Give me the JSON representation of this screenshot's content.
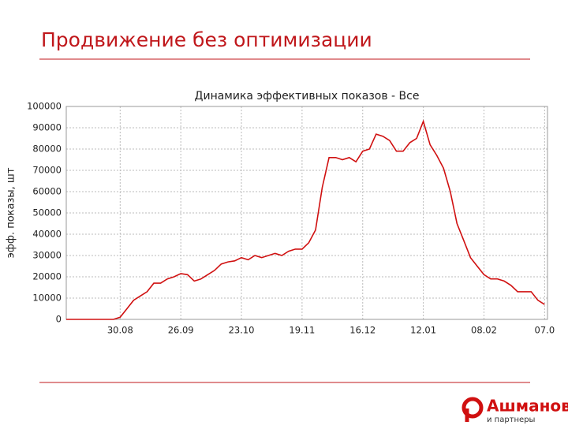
{
  "slide_title": "Продвижение без оптимизации",
  "logo": {
    "name": "Ашманов",
    "tagline": "и партнеры"
  },
  "chart_data": {
    "type": "line",
    "title": "Динамика эффективных показов - Все",
    "y_label": "эфф. показы, шт",
    "categories": [
      null,
      null,
      null,
      null,
      null,
      null,
      null,
      null,
      "30.08",
      null,
      null,
      null,
      null,
      null,
      null,
      null,
      null,
      "26.09",
      null,
      null,
      null,
      null,
      null,
      null,
      null,
      null,
      "23.10",
      null,
      null,
      null,
      null,
      null,
      null,
      null,
      null,
      "19.11",
      null,
      null,
      null,
      null,
      null,
      null,
      null,
      null,
      "16.12",
      null,
      null,
      null,
      null,
      null,
      null,
      null,
      null,
      "12.01",
      null,
      null,
      null,
      null,
      null,
      null,
      null,
      null,
      "08.02",
      null,
      null,
      null,
      null,
      null,
      null,
      null,
      null,
      "07.0"
    ],
    "series": [
      {
        "name": "Все",
        "color": "#d01010",
        "values": [
          0,
          0,
          0,
          0,
          0,
          0,
          0,
          0,
          1000,
          5000,
          9000,
          11000,
          13000,
          17000,
          17000,
          19000,
          20000,
          21500,
          21000,
          18000,
          19000,
          21000,
          23000,
          26000,
          27000,
          27500,
          29000,
          28000,
          30000,
          29000,
          30000,
          31000,
          30000,
          32000,
          33000,
          33000,
          36000,
          42000,
          62000,
          76000,
          76000,
          75000,
          76000,
          74000,
          79000,
          80000,
          87000,
          86000,
          84000,
          79000,
          79000,
          83000,
          85000,
          93000,
          82000,
          77000,
          71000,
          60000,
          45000,
          37000,
          29000,
          25000,
          21000,
          19000,
          19000,
          18000,
          16000,
          13000,
          13000,
          13000,
          9000,
          7000
        ]
      }
    ],
    "ylim": [
      0,
      100000
    ],
    "yticks": [
      0,
      10000,
      20000,
      30000,
      40000,
      50000,
      60000,
      70000,
      80000,
      90000,
      100000
    ],
    "grid": true
  }
}
